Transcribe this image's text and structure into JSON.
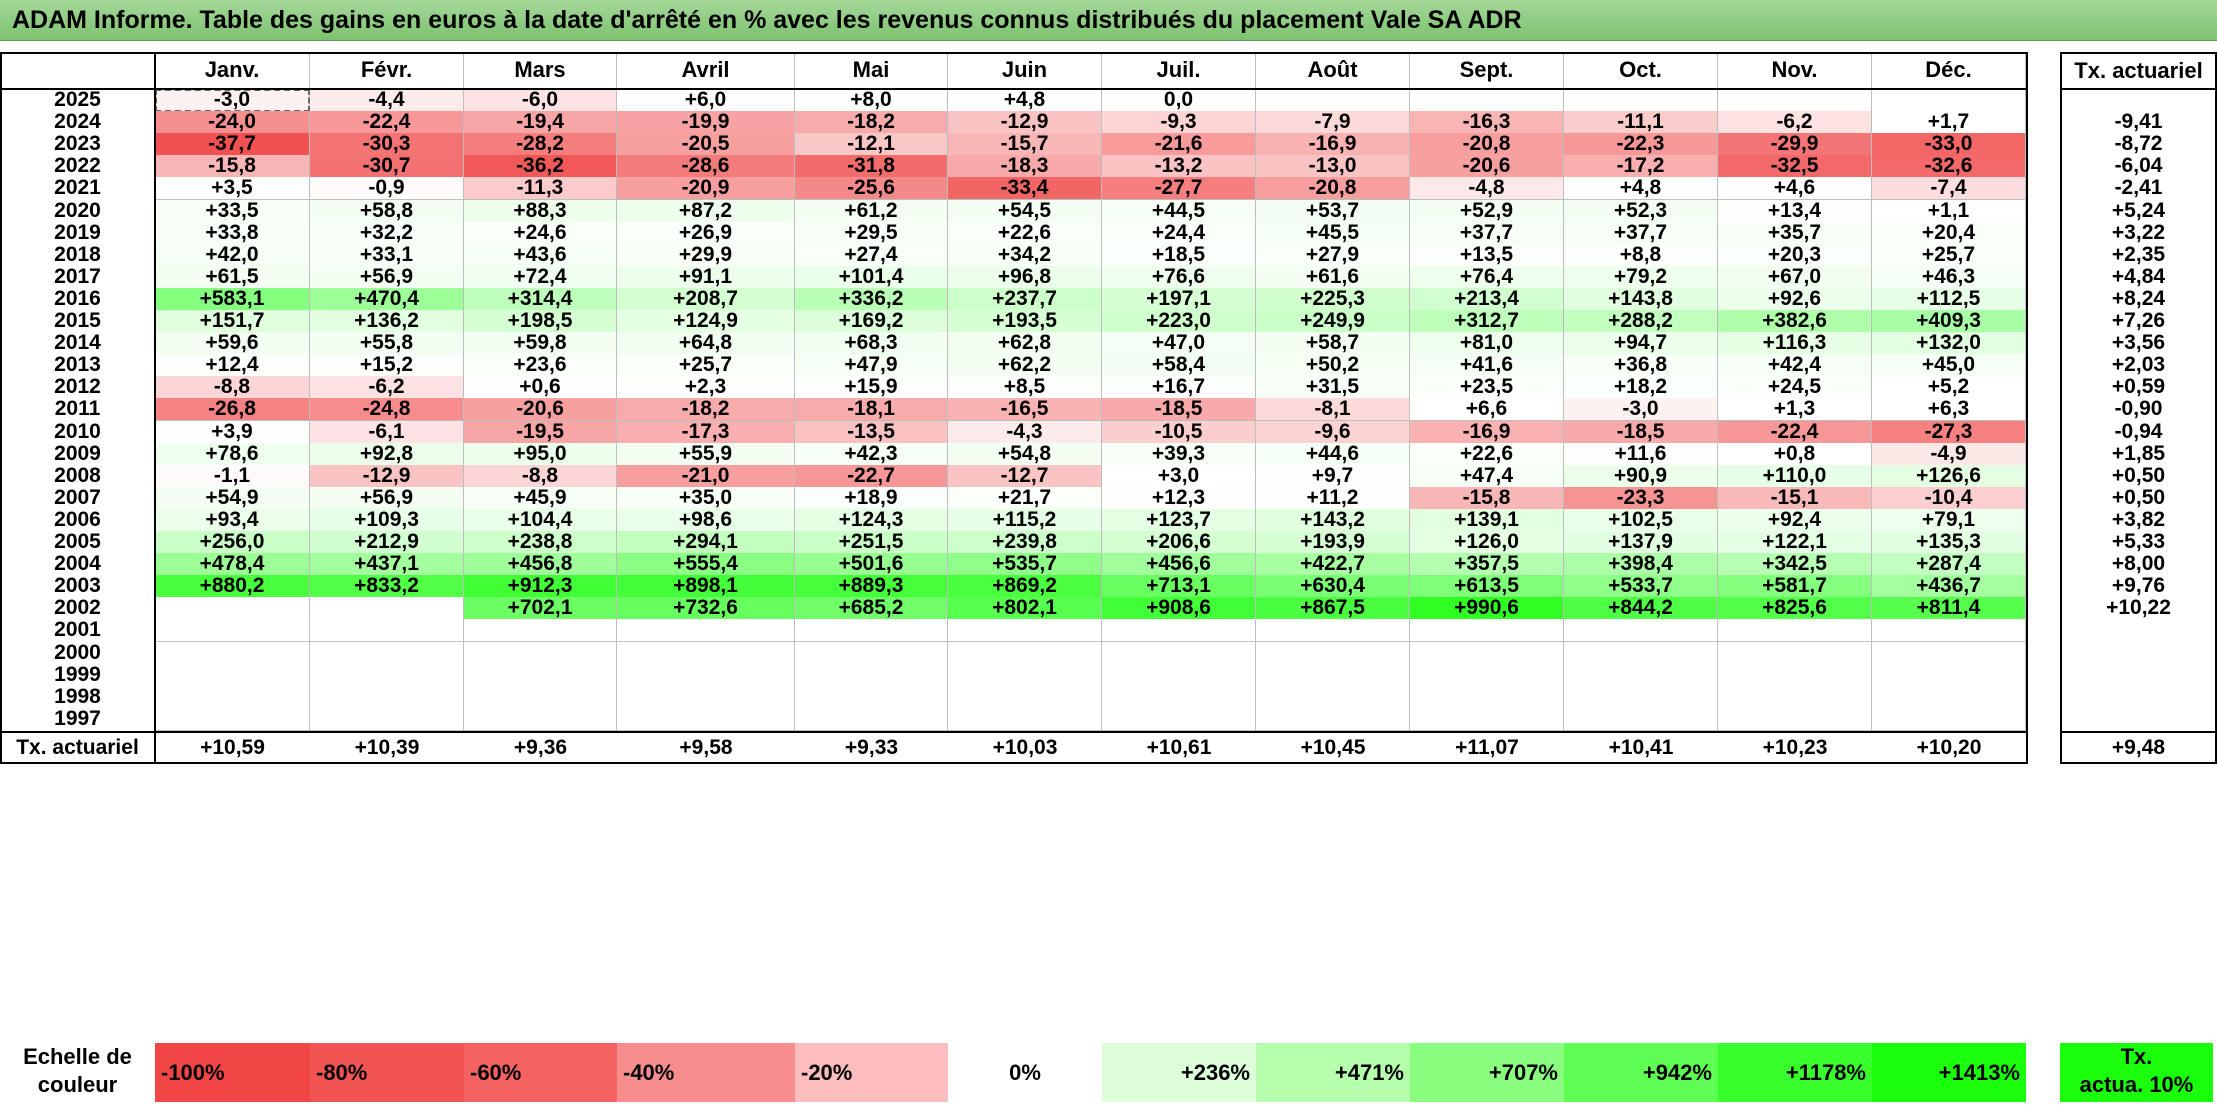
{
  "title": "ADAM Informe. Table des gains en euros à la date d'arrêté en % avec les revenus connus distribués du placement Vale SA ADR",
  "months": [
    "Janv.",
    "Févr.",
    "Mars",
    "Avril",
    "Mai",
    "Juin",
    "Juil.",
    "Août",
    "Sept.",
    "Oct.",
    "Nov.",
    "Déc."
  ],
  "rate_header": "Tx. actuariel",
  "rows": [
    {
      "year": "2025",
      "values": [
        "-3,0",
        "-4,4",
        "-6,0",
        "+6,0",
        "+8,0",
        "+4,8",
        "0,0",
        "",
        "",
        "",
        "",
        ""
      ],
      "rate": ""
    },
    {
      "year": "2024",
      "values": [
        "-24,0",
        "-22,4",
        "-19,4",
        "-19,9",
        "-18,2",
        "-12,9",
        "-9,3",
        "-7,9",
        "-16,3",
        "-11,1",
        "-6,2",
        "+1,7"
      ],
      "rate": "-9,41"
    },
    {
      "year": "2023",
      "values": [
        "-37,7",
        "-30,3",
        "-28,2",
        "-20,5",
        "-12,1",
        "-15,7",
        "-21,6",
        "-16,9",
        "-20,8",
        "-22,3",
        "-29,9",
        "-33,0"
      ],
      "rate": "-8,72"
    },
    {
      "year": "2022",
      "values": [
        "-15,8",
        "-30,7",
        "-36,2",
        "-28,6",
        "-31,8",
        "-18,3",
        "-13,2",
        "-13,0",
        "-20,6",
        "-17,2",
        "-32,5",
        "-32,6"
      ],
      "rate": "-6,04"
    },
    {
      "year": "2021",
      "values": [
        "+3,5",
        "-0,9",
        "-11,3",
        "-20,9",
        "-25,6",
        "-33,4",
        "-27,7",
        "-20,8",
        "-4,8",
        "+4,8",
        "+4,6",
        "-7,4"
      ],
      "rate": "-2,41"
    },
    {
      "year": "2020",
      "values": [
        "+33,5",
        "+58,8",
        "+88,3",
        "+87,2",
        "+61,2",
        "+54,5",
        "+44,5",
        "+53,7",
        "+52,9",
        "+52,3",
        "+13,4",
        "+1,1"
      ],
      "rate": "+5,24"
    },
    {
      "year": "2019",
      "values": [
        "+33,8",
        "+32,2",
        "+24,6",
        "+26,9",
        "+29,5",
        "+22,6",
        "+24,4",
        "+45,5",
        "+37,7",
        "+37,7",
        "+35,7",
        "+20,4"
      ],
      "rate": "+3,22"
    },
    {
      "year": "2018",
      "values": [
        "+42,0",
        "+33,1",
        "+43,6",
        "+29,9",
        "+27,4",
        "+34,2",
        "+18,5",
        "+27,9",
        "+13,5",
        "+8,8",
        "+20,3",
        "+25,7"
      ],
      "rate": "+2,35"
    },
    {
      "year": "2017",
      "values": [
        "+61,5",
        "+56,9",
        "+72,4",
        "+91,1",
        "+101,4",
        "+96,8",
        "+76,6",
        "+61,6",
        "+76,4",
        "+79,2",
        "+67,0",
        "+46,3"
      ],
      "rate": "+4,84"
    },
    {
      "year": "2016",
      "values": [
        "+583,1",
        "+470,4",
        "+314,4",
        "+208,7",
        "+336,2",
        "+237,7",
        "+197,1",
        "+225,3",
        "+213,4",
        "+143,8",
        "+92,6",
        "+112,5"
      ],
      "rate": "+8,24"
    },
    {
      "year": "2015",
      "values": [
        "+151,7",
        "+136,2",
        "+198,5",
        "+124,9",
        "+169,2",
        "+193,5",
        "+223,0",
        "+249,9",
        "+312,7",
        "+288,2",
        "+382,6",
        "+409,3"
      ],
      "rate": "+7,26"
    },
    {
      "year": "2014",
      "values": [
        "+59,6",
        "+55,8",
        "+59,8",
        "+64,8",
        "+68,3",
        "+62,8",
        "+47,0",
        "+58,7",
        "+81,0",
        "+94,7",
        "+116,3",
        "+132,0"
      ],
      "rate": "+3,56"
    },
    {
      "year": "2013",
      "values": [
        "+12,4",
        "+15,2",
        "+23,6",
        "+25,7",
        "+47,9",
        "+62,2",
        "+58,4",
        "+50,2",
        "+41,6",
        "+36,8",
        "+42,4",
        "+45,0"
      ],
      "rate": "+2,03"
    },
    {
      "year": "2012",
      "values": [
        "-8,8",
        "-6,2",
        "+0,6",
        "+2,3",
        "+15,9",
        "+8,5",
        "+16,7",
        "+31,5",
        "+23,5",
        "+18,2",
        "+24,5",
        "+5,2"
      ],
      "rate": "+0,59"
    },
    {
      "year": "2011",
      "values": [
        "-26,8",
        "-24,8",
        "-20,6",
        "-18,2",
        "-18,1",
        "-16,5",
        "-18,5",
        "-8,1",
        "+6,6",
        "-3,0",
        "+1,3",
        "+6,3"
      ],
      "rate": "-0,90"
    },
    {
      "year": "2010",
      "values": [
        "+3,9",
        "-6,1",
        "-19,5",
        "-17,3",
        "-13,5",
        "-4,3",
        "-10,5",
        "-9,6",
        "-16,9",
        "-18,5",
        "-22,4",
        "-27,3"
      ],
      "rate": "-0,94"
    },
    {
      "year": "2009",
      "values": [
        "+78,6",
        "+92,8",
        "+95,0",
        "+55,9",
        "+42,3",
        "+54,8",
        "+39,3",
        "+44,6",
        "+22,6",
        "+11,6",
        "+0,8",
        "-4,9"
      ],
      "rate": "+1,85"
    },
    {
      "year": "2008",
      "values": [
        "-1,1",
        "-12,9",
        "-8,8",
        "-21,0",
        "-22,7",
        "-12,7",
        "+3,0",
        "+9,7",
        "+47,4",
        "+90,9",
        "+110,0",
        "+126,6"
      ],
      "rate": "+0,50"
    },
    {
      "year": "2007",
      "values": [
        "+54,9",
        "+56,9",
        "+45,9",
        "+35,0",
        "+18,9",
        "+21,7",
        "+12,3",
        "+11,2",
        "-15,8",
        "-23,3",
        "-15,1",
        "-10,4"
      ],
      "rate": "+0,50"
    },
    {
      "year": "2006",
      "values": [
        "+93,4",
        "+109,3",
        "+104,4",
        "+98,6",
        "+124,3",
        "+115,2",
        "+123,7",
        "+143,2",
        "+139,1",
        "+102,5",
        "+92,4",
        "+79,1"
      ],
      "rate": "+3,82"
    },
    {
      "year": "2005",
      "values": [
        "+256,0",
        "+212,9",
        "+238,8",
        "+294,1",
        "+251,5",
        "+239,8",
        "+206,6",
        "+193,9",
        "+126,0",
        "+137,9",
        "+122,1",
        "+135,3"
      ],
      "rate": "+5,33"
    },
    {
      "year": "2004",
      "values": [
        "+478,4",
        "+437,1",
        "+456,8",
        "+555,4",
        "+501,6",
        "+535,7",
        "+456,6",
        "+422,7",
        "+357,5",
        "+398,4",
        "+342,5",
        "+287,4"
      ],
      "rate": "+8,00"
    },
    {
      "year": "2003",
      "values": [
        "+880,2",
        "+833,2",
        "+912,3",
        "+898,1",
        "+889,3",
        "+869,2",
        "+713,1",
        "+630,4",
        "+613,5",
        "+533,7",
        "+581,7",
        "+436,7"
      ],
      "rate": "+9,76"
    },
    {
      "year": "2002",
      "values": [
        "",
        "",
        "+702,1",
        "+732,6",
        "+685,2",
        "+802,1",
        "+908,6",
        "+867,5",
        "+990,6",
        "+844,2",
        "+825,6",
        "+811,4"
      ],
      "rate": "+10,22"
    },
    {
      "year": "2001",
      "values": [
        "",
        "",
        "",
        "",
        "",
        "",
        "",
        "",
        "",
        "",
        "",
        ""
      ],
      "rate": ""
    },
    {
      "year": "2000",
      "values": [
        "",
        "",
        "",
        "",
        "",
        "",
        "",
        "",
        "",
        "",
        "",
        ""
      ],
      "rate": ""
    },
    {
      "year": "1999",
      "values": [
        "",
        "",
        "",
        "",
        "",
        "",
        "",
        "",
        "",
        "",
        "",
        ""
      ],
      "rate": ""
    },
    {
      "year": "1998",
      "values": [
        "",
        "",
        "",
        "",
        "",
        "",
        "",
        "",
        "",
        "",
        "",
        ""
      ],
      "rate": ""
    },
    {
      "year": "1997",
      "values": [
        "",
        "",
        "",
        "",
        "",
        "",
        "",
        "",
        "",
        "",
        "",
        ""
      ],
      "rate": ""
    }
  ],
  "totals": {
    "label": "Tx. actuariel",
    "values": [
      "+10,59",
      "+10,39",
      "+9,36",
      "+9,58",
      "+9,33",
      "+10,03",
      "+10,61",
      "+10,45",
      "+11,07",
      "+10,41",
      "+10,23",
      "+10,20"
    ],
    "rate": "+9,48"
  },
  "scale": {
    "label_line1": "Echelle de",
    "label_line2": "couleur",
    "items": [
      {
        "text": "-100%",
        "color": "#f04646",
        "align": "left"
      },
      {
        "text": "-80%",
        "color": "#f25353",
        "align": "left"
      },
      {
        "text": "-60%",
        "color": "#f56262",
        "align": "left"
      },
      {
        "text": "-40%",
        "color": "#f88d8d",
        "align": "left"
      },
      {
        "text": "-20%",
        "color": "#fbbdbd",
        "align": "left"
      },
      {
        "text": "0%",
        "color": "#ffffff",
        "align": "center"
      },
      {
        "text": "+236%",
        "color": "#dcffd9",
        "align": "right"
      },
      {
        "text": "+471%",
        "color": "#b5ffad",
        "align": "right"
      },
      {
        "text": "+707%",
        "color": "#8aff7f",
        "align": "right"
      },
      {
        "text": "+942%",
        "color": "#5eff52",
        "align": "right"
      },
      {
        "text": "+1178%",
        "color": "#38ff2c",
        "align": "right"
      },
      {
        "text": "+1413%",
        "color": "#19ff0c",
        "align": "right"
      }
    ],
    "rate_line1": "Tx.",
    "rate_line2": "actua. 10%",
    "rate_color": "#19ff0c"
  },
  "colors": {
    "negative_max": "#f04646",
    "positive_max": "#19ff0c",
    "neutral": "#ffffff"
  }
}
